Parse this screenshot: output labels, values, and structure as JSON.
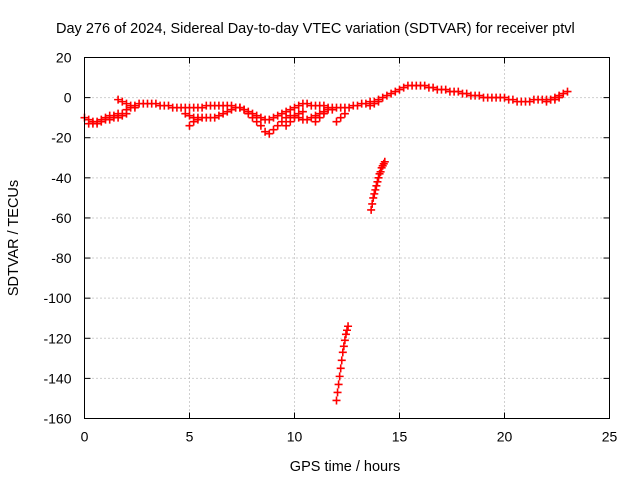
{
  "chart_data": {
    "type": "scatter",
    "title": "Day 276 of 2024, Sidereal Day-to-day VTEC variation (SDTVAR) for receiver ptvl",
    "xlabel": "GPS time / hours",
    "ylabel": "SDTVAR / TECUs",
    "xlim": [
      0,
      25
    ],
    "ylim": [
      -160,
      20
    ],
    "xticks": [
      "0",
      "5",
      "10",
      "15",
      "20",
      "25"
    ],
    "yticks": [
      "20",
      "0",
      "-20",
      "-40",
      "-60",
      "-80",
      "-100",
      "-120",
      "-140",
      "-160"
    ],
    "grid": true,
    "marker": "+",
    "color": "#ff0000",
    "series": [
      {
        "name": "main-band",
        "points": [
          [
            0.0,
            -10
          ],
          [
            0.2,
            -11
          ],
          [
            0.4,
            -12
          ],
          [
            0.6,
            -12
          ],
          [
            0.8,
            -11
          ],
          [
            1.0,
            -10
          ],
          [
            1.2,
            -9
          ],
          [
            1.4,
            -9
          ],
          [
            1.6,
            -8
          ],
          [
            1.8,
            -8
          ],
          [
            2.0,
            -6
          ],
          [
            2.2,
            -5
          ],
          [
            2.4,
            -4
          ],
          [
            2.6,
            -3
          ],
          [
            2.8,
            -3
          ],
          [
            3.0,
            -3
          ],
          [
            3.2,
            -3
          ],
          [
            3.4,
            -3
          ],
          [
            3.6,
            -4
          ],
          [
            3.8,
            -4
          ],
          [
            4.0,
            -4
          ],
          [
            4.2,
            -5
          ],
          [
            4.4,
            -5
          ],
          [
            4.6,
            -5
          ],
          [
            4.8,
            -5
          ],
          [
            5.0,
            -5
          ],
          [
            5.2,
            -5
          ],
          [
            5.4,
            -5
          ],
          [
            5.6,
            -5
          ],
          [
            5.8,
            -4
          ],
          [
            6.0,
            -4
          ],
          [
            6.2,
            -4
          ],
          [
            6.4,
            -4
          ],
          [
            6.6,
            -4
          ],
          [
            6.8,
            -4
          ],
          [
            7.0,
            -4
          ],
          [
            7.2,
            -5
          ],
          [
            7.4,
            -5
          ],
          [
            7.6,
            -6
          ],
          [
            7.8,
            -7
          ],
          [
            8.0,
            -8
          ],
          [
            8.2,
            -9
          ],
          [
            8.4,
            -10
          ],
          [
            8.6,
            -11
          ],
          [
            8.8,
            -11
          ],
          [
            9.0,
            -10
          ],
          [
            9.2,
            -9
          ],
          [
            9.4,
            -8
          ],
          [
            9.6,
            -7
          ],
          [
            9.8,
            -6
          ],
          [
            10.0,
            -5
          ],
          [
            10.2,
            -4
          ],
          [
            10.4,
            -3
          ],
          [
            10.6,
            -3
          ],
          [
            10.8,
            -4
          ],
          [
            11.0,
            -4
          ],
          [
            11.2,
            -4
          ],
          [
            11.4,
            -4
          ],
          [
            11.6,
            -5
          ],
          [
            11.8,
            -5
          ],
          [
            12.0,
            -5
          ],
          [
            12.2,
            -5
          ],
          [
            12.4,
            -5
          ],
          [
            12.6,
            -5
          ],
          [
            12.8,
            -4
          ],
          [
            13.0,
            -4
          ],
          [
            13.2,
            -3
          ],
          [
            13.4,
            -3
          ],
          [
            13.6,
            -2
          ],
          [
            13.8,
            -2
          ],
          [
            14.0,
            -1
          ],
          [
            14.2,
            0
          ],
          [
            14.4,
            1
          ],
          [
            14.6,
            2
          ],
          [
            14.8,
            3
          ],
          [
            15.0,
            4
          ],
          [
            15.2,
            5
          ],
          [
            15.4,
            6
          ],
          [
            15.6,
            6
          ],
          [
            15.8,
            6
          ],
          [
            16.0,
            6
          ],
          [
            16.2,
            6
          ],
          [
            16.4,
            5
          ],
          [
            16.6,
            5
          ],
          [
            16.8,
            4
          ],
          [
            17.0,
            4
          ],
          [
            17.2,
            4
          ],
          [
            17.4,
            3
          ],
          [
            17.6,
            3
          ],
          [
            17.8,
            3
          ],
          [
            18.0,
            2
          ],
          [
            18.2,
            2
          ],
          [
            18.4,
            1
          ],
          [
            18.6,
            1
          ],
          [
            18.8,
            1
          ],
          [
            19.0,
            0
          ],
          [
            19.2,
            0
          ],
          [
            19.4,
            0
          ],
          [
            19.6,
            0
          ],
          [
            19.8,
            0
          ],
          [
            20.0,
            0
          ],
          [
            20.2,
            -1
          ],
          [
            20.4,
            -1
          ],
          [
            20.6,
            -2
          ],
          [
            20.8,
            -2
          ],
          [
            21.0,
            -2
          ],
          [
            21.2,
            -2
          ],
          [
            21.4,
            -1
          ],
          [
            21.6,
            -1
          ],
          [
            21.8,
            -1
          ],
          [
            22.0,
            -1
          ],
          [
            22.2,
            -1
          ],
          [
            22.4,
            0
          ],
          [
            22.6,
            1
          ],
          [
            22.8,
            2
          ],
          [
            23.0,
            3
          ]
        ]
      },
      {
        "name": "lower-band",
        "points": [
          [
            0.2,
            -13
          ],
          [
            0.4,
            -13
          ],
          [
            0.6,
            -13
          ],
          [
            0.8,
            -12
          ],
          [
            1.0,
            -11
          ],
          [
            1.2,
            -11
          ],
          [
            1.4,
            -10
          ],
          [
            1.6,
            -10
          ],
          [
            1.8,
            -9
          ],
          [
            2.0,
            -8
          ],
          [
            5.0,
            -14
          ],
          [
            5.2,
            -12
          ],
          [
            5.4,
            -11
          ],
          [
            5.6,
            -10
          ],
          [
            5.8,
            -10
          ],
          [
            6.0,
            -10
          ],
          [
            6.2,
            -10
          ],
          [
            6.4,
            -9
          ],
          [
            6.6,
            -8
          ],
          [
            6.8,
            -7
          ],
          [
            7.0,
            -6
          ],
          [
            7.2,
            -5
          ],
          [
            7.4,
            -5
          ],
          [
            7.6,
            -6
          ],
          [
            7.8,
            -8
          ],
          [
            8.0,
            -10
          ],
          [
            8.2,
            -12
          ],
          [
            8.4,
            -14
          ],
          [
            8.6,
            -17
          ],
          [
            8.8,
            -18
          ],
          [
            9.0,
            -16
          ],
          [
            9.2,
            -14
          ],
          [
            9.4,
            -12
          ],
          [
            9.6,
            -10
          ],
          [
            9.8,
            -9
          ],
          [
            10.0,
            -9
          ],
          [
            10.2,
            -10
          ],
          [
            10.4,
            -11
          ],
          [
            10.6,
            -11
          ],
          [
            10.8,
            -10
          ],
          [
            11.0,
            -9
          ],
          [
            11.2,
            -8
          ],
          [
            11.4,
            -7
          ],
          [
            11.6,
            -6
          ],
          [
            11.8,
            -6
          ]
        ]
      },
      {
        "name": "short-segments",
        "points": [
          [
            1.6,
            -1
          ],
          [
            1.8,
            -2
          ],
          [
            2.0,
            -3
          ],
          [
            2.2,
            -4
          ],
          [
            2.4,
            -5
          ],
          [
            4.8,
            -8
          ],
          [
            5.0,
            -9
          ],
          [
            5.2,
            -10
          ],
          [
            5.4,
            -10
          ],
          [
            9.6,
            -14
          ],
          [
            9.8,
            -12
          ],
          [
            10.0,
            -10
          ],
          [
            10.2,
            -8
          ],
          [
            10.4,
            -7
          ],
          [
            11.0,
            -12
          ],
          [
            11.2,
            -10
          ],
          [
            11.4,
            -8
          ],
          [
            12.0,
            -12
          ],
          [
            12.2,
            -10
          ],
          [
            12.4,
            -8
          ],
          [
            13.6,
            -4
          ],
          [
            13.8,
            -3
          ],
          [
            14.0,
            -2
          ],
          [
            22.0,
            -2
          ],
          [
            22.2,
            -1
          ],
          [
            22.4,
            -1
          ],
          [
            22.6,
            0
          ]
        ]
      },
      {
        "name": "outlier-arc-1",
        "points": [
          [
            13.65,
            -56
          ],
          [
            13.7,
            -53
          ],
          [
            13.75,
            -50
          ],
          [
            13.8,
            -48
          ],
          [
            13.85,
            -46
          ],
          [
            13.9,
            -44
          ],
          [
            13.95,
            -42
          ],
          [
            14.0,
            -40
          ],
          [
            14.05,
            -38
          ],
          [
            14.1,
            -37
          ],
          [
            14.15,
            -35
          ],
          [
            14.2,
            -34
          ],
          [
            14.25,
            -33
          ],
          [
            14.3,
            -32
          ]
        ]
      },
      {
        "name": "outlier-arc-2",
        "points": [
          [
            12.0,
            -151
          ],
          [
            12.05,
            -147
          ],
          [
            12.1,
            -143
          ],
          [
            12.15,
            -139
          ],
          [
            12.2,
            -135
          ],
          [
            12.25,
            -131
          ],
          [
            12.3,
            -127
          ],
          [
            12.35,
            -124
          ],
          [
            12.4,
            -121
          ],
          [
            12.45,
            -118
          ],
          [
            12.5,
            -116
          ],
          [
            12.55,
            -114
          ]
        ]
      }
    ]
  }
}
